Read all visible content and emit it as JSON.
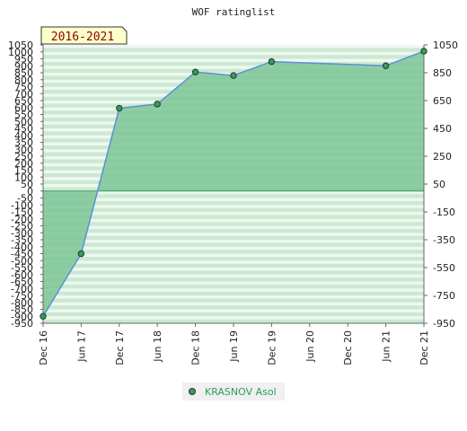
{
  "chart_data": {
    "type": "area",
    "title": "WOF ratinglist",
    "period_label": "2016-2021",
    "x_labels": [
      "Dec 16",
      "Jun 17",
      "Dec 17",
      "Jun 18",
      "Dec 18",
      "Jun 19",
      "Dec 19",
      "Jun 20",
      "Dec 20",
      "Jun 21",
      "Dec 21"
    ],
    "series": [
      {
        "name": "KRASNOV Asol",
        "points": [
          {
            "x": 0,
            "y": -900
          },
          {
            "x": 0.5,
            "y": -450
          },
          {
            "x": 1,
            "y": 595
          },
          {
            "x": 1.5,
            "y": 625
          },
          {
            "x": 2,
            "y": 855
          },
          {
            "x": 2.5,
            "y": 830
          },
          {
            "x": 3,
            "y": 930
          },
          {
            "x": 4.5,
            "y": 900
          },
          {
            "x": 5,
            "y": 1005
          }
        ]
      }
    ],
    "ylim": [
      -950,
      1050
    ],
    "y_ticks_left": [
      1050,
      1000,
      950,
      900,
      850,
      800,
      750,
      700,
      650,
      600,
      550,
      500,
      450,
      400,
      350,
      300,
      250,
      200,
      150,
      100,
      50,
      0,
      -50,
      -100,
      -150,
      -200,
      -250,
      -300,
      -350,
      -400,
      -450,
      -500,
      -550,
      -600,
      -650,
      -700,
      -750,
      -800,
      -850,
      -900,
      -950
    ],
    "y_ticks_right": [
      1050,
      850,
      650,
      450,
      250,
      50,
      -150,
      -350,
      -550,
      -750,
      -950
    ],
    "grid": true,
    "legend_position": "bottom-center",
    "colors": {
      "fill": "#7cc596",
      "line": "#5b8fd6",
      "marker": "#3a9a5c",
      "band_light": "#eef8f0",
      "band_dark": "#c4e6cd"
    }
  }
}
